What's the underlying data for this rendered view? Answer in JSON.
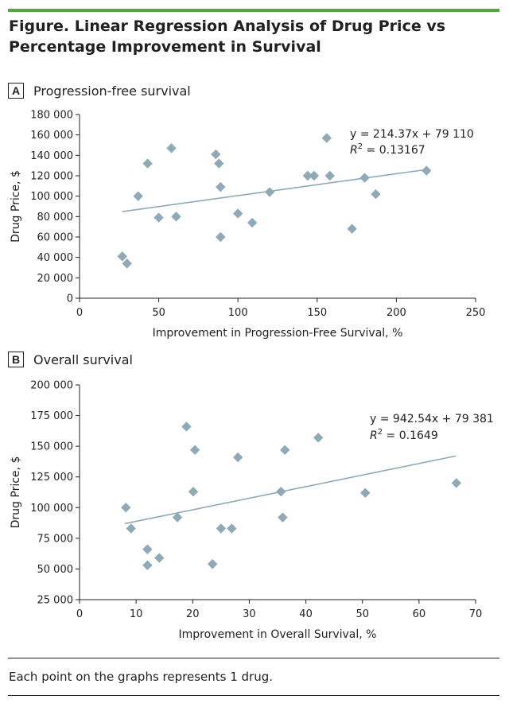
{
  "figure": {
    "title": "Figure. Linear Regression Analysis of Drug Price vs Percentage Improvement in Survival",
    "footnote": "Each point on the graphs represents 1 drug.",
    "colors": {
      "accent_bar": "#5aa246",
      "marker": "#8fa9b6",
      "trendline": "#8fa9b6",
      "text": "#231f20"
    }
  },
  "panels": [
    {
      "letter": "A",
      "title": "Progression-free survival"
    },
    {
      "letter": "B",
      "title": "Overall survival"
    }
  ],
  "chart_data": [
    {
      "type": "scatter",
      "xlabel": "Improvement in Progression-Free Survival, %",
      "ylabel": "Drug Price, $",
      "xlim": [
        0,
        250
      ],
      "ylim": [
        0,
        180000
      ],
      "xticks": [
        0,
        50,
        100,
        150,
        200,
        250
      ],
      "yticks": [
        0,
        20000,
        40000,
        60000,
        80000,
        100000,
        120000,
        140000,
        160000,
        180000
      ],
      "xtick_labels": [
        "0",
        "50",
        "100",
        "150",
        "200",
        "250"
      ],
      "ytick_labels": [
        "0",
        "20 000",
        "40 000",
        "60 000",
        "80 000",
        "100 000",
        "120 000",
        "140 000",
        "160 000",
        "180 000"
      ],
      "grid": false,
      "points": [
        {
          "x": 27,
          "y": 41000
        },
        {
          "x": 30,
          "y": 34000
        },
        {
          "x": 37,
          "y": 100000
        },
        {
          "x": 43,
          "y": 132000
        },
        {
          "x": 50,
          "y": 79000
        },
        {
          "x": 58,
          "y": 147000
        },
        {
          "x": 61,
          "y": 80000
        },
        {
          "x": 86,
          "y": 141000
        },
        {
          "x": 88,
          "y": 132000
        },
        {
          "x": 89,
          "y": 109000
        },
        {
          "x": 89,
          "y": 60000
        },
        {
          "x": 100,
          "y": 83000
        },
        {
          "x": 109,
          "y": 74000
        },
        {
          "x": 120,
          "y": 104000
        },
        {
          "x": 144,
          "y": 120000
        },
        {
          "x": 148,
          "y": 120000
        },
        {
          "x": 156,
          "y": 157000
        },
        {
          "x": 158,
          "y": 120000
        },
        {
          "x": 172,
          "y": 68000
        },
        {
          "x": 180,
          "y": 118000
        },
        {
          "x": 187,
          "y": 102000
        },
        {
          "x": 219,
          "y": 125000
        }
      ],
      "trendline": {
        "slope": 214.37,
        "intercept": 79110,
        "x_range": [
          27,
          220
        ]
      },
      "annotations": {
        "equation": "y = 214.37x + 79 110",
        "r2_label": "R",
        "r2_sup": "2",
        "r2_value": " = 0.13167"
      }
    },
    {
      "type": "scatter",
      "xlabel": "Improvement in Overall Survival, %",
      "ylabel": "Drug Price, $",
      "xlim": [
        0,
        70
      ],
      "ylim": [
        25000,
        200000
      ],
      "xticks": [
        0,
        10,
        20,
        30,
        40,
        50,
        60,
        70
      ],
      "yticks": [
        25000,
        50000,
        75000,
        100000,
        125000,
        150000,
        175000,
        200000
      ],
      "xtick_labels": [
        "0",
        "10",
        "20",
        "30",
        "40",
        "50",
        "60",
        "70"
      ],
      "ytick_labels": [
        "25 000",
        "50 000",
        "75 000",
        "100 000",
        "125 000",
        "150 000",
        "175 000",
        "200 000"
      ],
      "grid": false,
      "points": [
        {
          "x": 8.2,
          "y": 100000
        },
        {
          "x": 9.1,
          "y": 83000
        },
        {
          "x": 12.0,
          "y": 66000
        },
        {
          "x": 12.0,
          "y": 53000
        },
        {
          "x": 14.1,
          "y": 59000
        },
        {
          "x": 17.3,
          "y": 92000
        },
        {
          "x": 18.9,
          "y": 166000
        },
        {
          "x": 20.1,
          "y": 113000
        },
        {
          "x": 20.4,
          "y": 147000
        },
        {
          "x": 23.5,
          "y": 54000
        },
        {
          "x": 25.0,
          "y": 83000
        },
        {
          "x": 26.9,
          "y": 83000
        },
        {
          "x": 28.0,
          "y": 141000
        },
        {
          "x": 35.6,
          "y": 113000
        },
        {
          "x": 35.9,
          "y": 92000
        },
        {
          "x": 36.3,
          "y": 147000
        },
        {
          "x": 42.2,
          "y": 157000
        },
        {
          "x": 50.5,
          "y": 112000
        },
        {
          "x": 66.6,
          "y": 120000
        }
      ],
      "trendline": {
        "slope": 942.54,
        "intercept": 79381,
        "x_range": [
          8,
          66.5
        ]
      },
      "annotations": {
        "equation": "y = 942.54x + 79 381",
        "r2_label": "R",
        "r2_sup": "2",
        "r2_value": " = 0.1649"
      }
    }
  ]
}
